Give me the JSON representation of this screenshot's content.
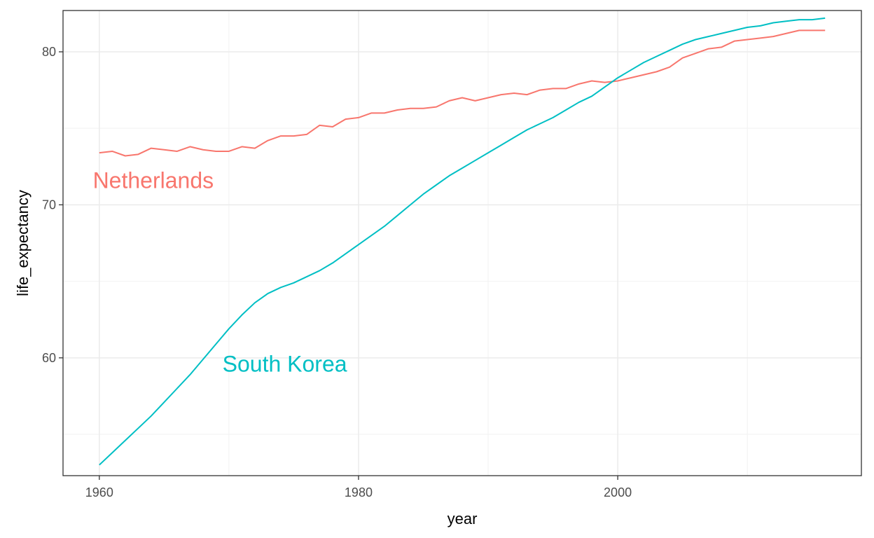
{
  "chart_data": {
    "type": "line",
    "title": "",
    "xlabel": "year",
    "ylabel": "life_expectancy",
    "xlim": [
      1957.2,
      2018.8
    ],
    "ylim": [
      52.3,
      82.7
    ],
    "x_ticks": [
      1960,
      1980,
      2000
    ],
    "y_ticks": [
      60,
      70,
      80
    ],
    "x_tick_labels": [
      "1960",
      "1980",
      "2000"
    ],
    "y_tick_labels": [
      "60",
      "70",
      "80"
    ],
    "grid": true,
    "legend": "none",
    "x": [
      1960,
      1961,
      1962,
      1963,
      1964,
      1965,
      1966,
      1967,
      1968,
      1969,
      1970,
      1971,
      1972,
      1973,
      1974,
      1975,
      1976,
      1977,
      1978,
      1979,
      1980,
      1981,
      1982,
      1983,
      1984,
      1985,
      1986,
      1987,
      1988,
      1989,
      1990,
      1991,
      1992,
      1993,
      1994,
      1995,
      1996,
      1997,
      1998,
      1999,
      2000,
      2001,
      2002,
      2003,
      2004,
      2005,
      2006,
      2007,
      2008,
      2009,
      2010,
      2011,
      2012,
      2013,
      2014,
      2015,
      2016
    ],
    "series": [
      {
        "name": "Netherlands",
        "color": "#F8766D",
        "label_year": 1959.5,
        "label_value": 71.6,
        "values": [
          73.4,
          73.5,
          73.2,
          73.3,
          73.7,
          73.6,
          73.5,
          73.8,
          73.6,
          73.5,
          73.5,
          73.8,
          73.7,
          74.2,
          74.5,
          74.5,
          74.6,
          75.2,
          75.1,
          75.6,
          75.7,
          76.0,
          76.0,
          76.2,
          76.3,
          76.3,
          76.4,
          76.8,
          77.0,
          76.8,
          77.0,
          77.2,
          77.3,
          77.2,
          77.5,
          77.6,
          77.6,
          77.9,
          78.1,
          78.0,
          78.1,
          78.3,
          78.5,
          78.7,
          79.0,
          79.6,
          79.9,
          80.2,
          80.3,
          80.7,
          80.8,
          80.9,
          81.0,
          81.2,
          81.4,
          81.4,
          81.4
        ]
      },
      {
        "name": "South Korea",
        "color": "#00BFC4",
        "label_year": 1969.5,
        "label_value": 59.6,
        "values": [
          53.0,
          53.8,
          54.6,
          55.4,
          56.2,
          57.1,
          58.0,
          58.9,
          59.9,
          60.9,
          61.9,
          62.8,
          63.6,
          64.2,
          64.6,
          64.9,
          65.3,
          65.7,
          66.2,
          66.8,
          67.4,
          68.0,
          68.6,
          69.3,
          70.0,
          70.7,
          71.3,
          71.9,
          72.4,
          72.9,
          73.4,
          73.9,
          74.4,
          74.9,
          75.3,
          75.7,
          76.2,
          76.7,
          77.1,
          77.7,
          78.3,
          78.8,
          79.3,
          79.7,
          80.1,
          80.5,
          80.8,
          81.0,
          81.2,
          81.4,
          81.6,
          81.7,
          81.9,
          82.0,
          82.1,
          82.1,
          82.2
        ]
      }
    ]
  }
}
